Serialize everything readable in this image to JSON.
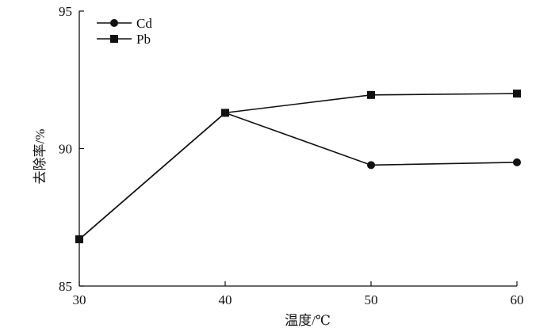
{
  "chart_data": {
    "type": "line",
    "x": [
      30,
      40,
      50,
      60
    ],
    "xlabel": "温度/℃",
    "ylabel": "去除率/%",
    "xlim": [
      30,
      60
    ],
    "ylim": [
      85,
      95
    ],
    "xticks": [
      30,
      40,
      50,
      60
    ],
    "yticks": [
      85,
      90,
      95
    ],
    "grid": false,
    "legend_position": "top-left",
    "series": [
      {
        "name": "Cd",
        "marker": "circle",
        "color": "#111111",
        "values": [
          86.7,
          91.3,
          89.4,
          89.5
        ]
      },
      {
        "name": "Pb",
        "marker": "square",
        "color": "#111111",
        "values": [
          86.7,
          91.3,
          91.95,
          92.0
        ]
      }
    ]
  }
}
